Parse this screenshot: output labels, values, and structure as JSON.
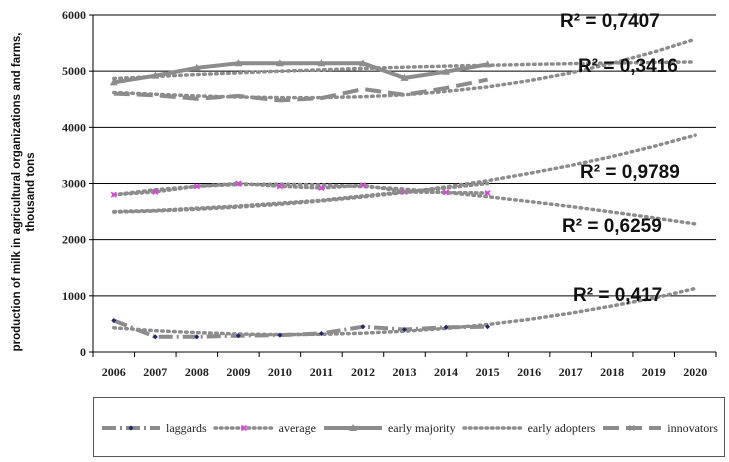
{
  "chart_data": {
    "type": "line",
    "ylabel_line1": "production  of milk  in agricultural organizations   and farms,",
    "ylabel_line2": "thousand  tons",
    "ylim": [
      0,
      6000
    ],
    "yticks": [
      "0",
      "1000",
      "2000",
      "3000",
      "4000",
      "5000",
      "6000"
    ],
    "x": [
      "2006",
      "2007",
      "2008",
      "2009",
      "2010",
      "2011",
      "2012",
      "2013",
      "2014",
      "2015",
      "2016",
      "2017",
      "2018",
      "2019",
      "2020"
    ],
    "colors": {
      "series": "#8c8c8c",
      "marker_dark": "#1f2a6e",
      "marker_pink": "#e040e0"
    },
    "series": [
      {
        "name": "laggards",
        "style": "dash-dot",
        "marker": "diamond",
        "values": [
          560,
          270,
          270,
          290,
          300,
          330,
          450,
          400,
          440,
          450,
          null,
          null,
          null,
          null,
          null
        ]
      },
      {
        "name": "average",
        "style": "dot",
        "marker": "x",
        "values": [
          2800,
          2850,
          2950,
          3000,
          2950,
          2920,
          2970,
          2850,
          2840,
          2830,
          null,
          null,
          null,
          null,
          null
        ]
      },
      {
        "name": "early majority",
        "style": "solid",
        "marker": "triangle",
        "values": [
          4800,
          4920,
          5060,
          5140,
          5140,
          5140,
          5140,
          4880,
          4990,
          5120,
          null,
          null,
          null,
          null,
          null
        ]
      },
      {
        "name": "early adopters",
        "style": "dot",
        "marker": "none",
        "values": [
          2500,
          2520,
          2560,
          2600,
          2650,
          2700,
          2780,
          2850,
          2920,
          3000,
          null,
          null,
          null,
          null,
          null
        ]
      },
      {
        "name": "innovators",
        "style": "long-dash",
        "marker": "x",
        "values": [
          4600,
          4570,
          4510,
          4560,
          4480,
          4520,
          4680,
          4580,
          4700,
          4850,
          null,
          null,
          null,
          null,
          null
        ]
      }
    ],
    "trendlines": [
      {
        "of": "early majority",
        "r2": "R² = 0,7407",
        "values": [
          4870,
          4905,
          4940,
          4970,
          5000,
          5025,
          5050,
          5070,
          5090,
          5105,
          5120,
          5135,
          5145,
          5155,
          5165
        ]
      },
      {
        "of": "innovators",
        "r2": "R² = 0,3416",
        "values": [
          4620,
          4590,
          4560,
          4540,
          4530,
          4530,
          4545,
          4580,
          4640,
          4720,
          4830,
          4970,
          5140,
          5340,
          5570
        ]
      },
      {
        "of": "early adopters",
        "r2": "R² = 0,9789",
        "values": [
          2490,
          2510,
          2540,
          2580,
          2630,
          2690,
          2760,
          2840,
          2940,
          3050,
          3180,
          3320,
          3480,
          3660,
          3860
        ]
      },
      {
        "of": "average",
        "r2": "R² = 0,6259",
        "values": [
          2800,
          2890,
          2950,
          2980,
          2990,
          2975,
          2945,
          2900,
          2840,
          2765,
          2680,
          2590,
          2490,
          2390,
          2280
        ]
      },
      {
        "of": "laggards",
        "r2": "R² = 0,417",
        "values": [
          430,
          380,
          345,
          320,
          310,
          315,
          335,
          370,
          420,
          490,
          580,
          690,
          820,
          960,
          1130
        ]
      }
    ],
    "legend_position": "bottom",
    "grid": "horizontal"
  }
}
